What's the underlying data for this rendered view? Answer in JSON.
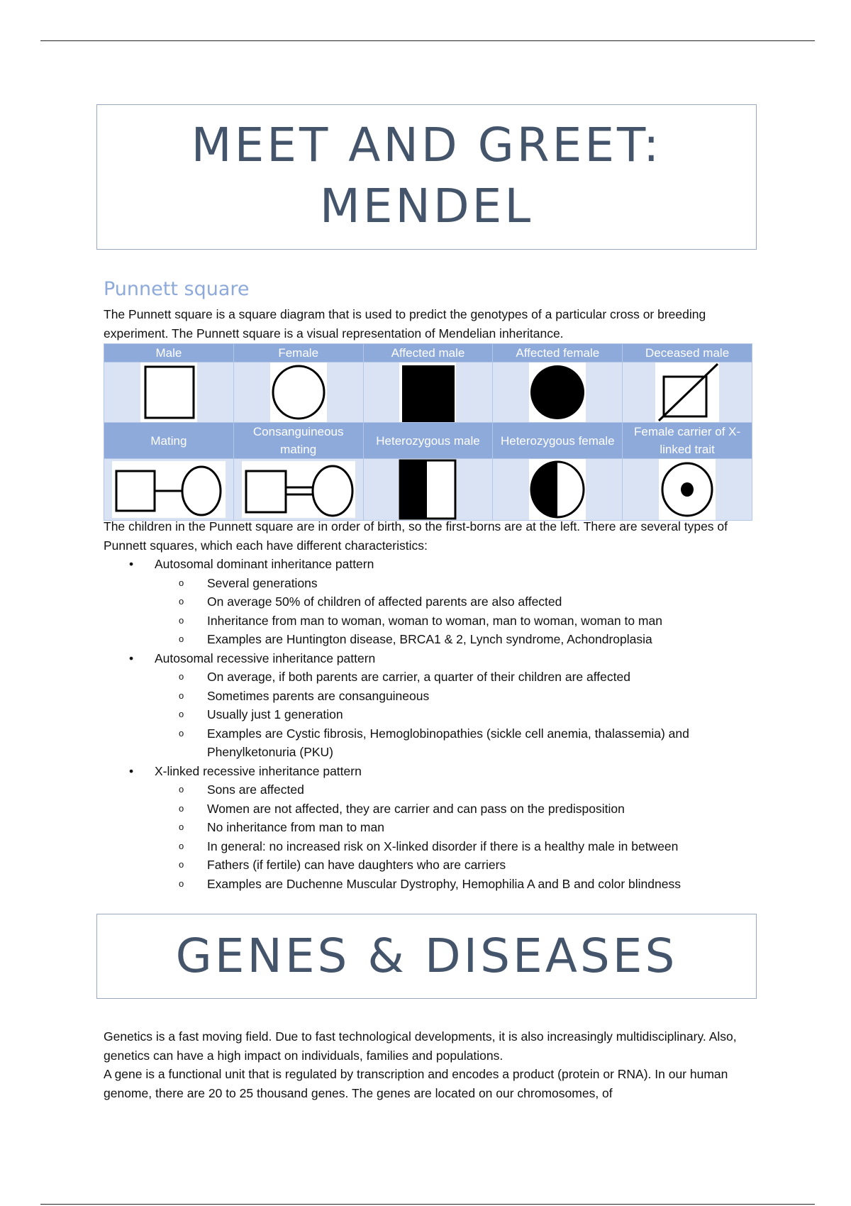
{
  "title1": "MEET AND GREET: MENDEL",
  "title2": "GENES & DISEASES",
  "section": {
    "heading": "Punnett square",
    "intro": "The Punnett square is a square diagram that is used to predict the genotypes of a particular cross or breeding experiment. The Punnett square is a visual representation of Mendelian inheritance.",
    "table": {
      "row1": [
        "Male",
        "Female",
        "Affected male",
        "Affected female",
        "Deceased male"
      ],
      "row2": [
        "Mating",
        "Consanguineous mating",
        "Heterozygous male",
        "Heterozygous female",
        "Female carrier of X-linked trait"
      ]
    },
    "after": "The children in the Punnett square are in order of birth, so the first-borns are at the left. There are several types of Punnett squares, which each have different characteristics:",
    "bullets": [
      {
        "label": "Autosomal dominant inheritance pattern",
        "items": [
          "Several generations",
          "On average 50% of children of affected parents are also affected",
          "Inheritance from man to woman, woman to woman, man to woman, woman to man",
          "Examples are Huntington disease, BRCA1 & 2, Lynch syndrome, Achondroplasia"
        ]
      },
      {
        "label": "Autosomal recessive inheritance pattern",
        "items": [
          "On average, if both parents are carrier, a quarter of their children are affected",
          "Sometimes parents are consanguineous",
          "Usually just 1 generation",
          "Examples are Cystic fibrosis, Hemoglobinopathies (sickle cell anemia, thalassemia) and Phenylketonuria (PKU)"
        ]
      },
      {
        "label": "X-linked recessive inheritance pattern",
        "items": [
          "Sons are affected",
          "Women are not affected, they are carrier and can pass on the predisposition",
          "No inheritance from man to man",
          "In general: no increased risk on X-linked disorder if there is a healthy male in between",
          "Fathers (if fertile) can have daughters who are carriers",
          "Examples are Duchenne Muscular Dystrophy, Hemophilia A and B and color blindness"
        ]
      }
    ]
  },
  "genes": {
    "p1": "Genetics is a fast moving field. Due to fast technological developments, it is also increasingly multidisciplinary. Also, genetics can have a high impact on individuals, families and populations.",
    "p2": "A gene is a functional unit that is regulated by transcription and encodes a product (protein or RNA). In our human genome, there are 20 to 25 thousand genes. The genes are located on our chromosomes, of"
  }
}
